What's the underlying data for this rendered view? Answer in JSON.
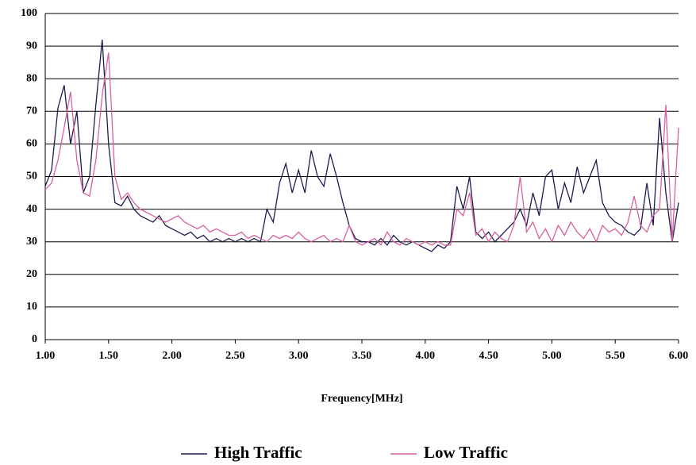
{
  "chart_data": {
    "type": "line",
    "x_label": "Frequency[MHz]",
    "x": [
      1.0,
      1.05,
      1.1,
      1.15,
      1.2,
      1.25,
      1.3,
      1.35,
      1.4,
      1.45,
      1.5,
      1.55,
      1.6,
      1.65,
      1.7,
      1.75,
      1.8,
      1.85,
      1.9,
      1.95,
      2.0,
      2.05,
      2.1,
      2.15,
      2.2,
      2.25,
      2.3,
      2.35,
      2.4,
      2.45,
      2.5,
      2.55,
      2.6,
      2.65,
      2.7,
      2.75,
      2.8,
      2.85,
      2.9,
      2.95,
      3.0,
      3.05,
      3.1,
      3.15,
      3.2,
      3.25,
      3.3,
      3.35,
      3.4,
      3.45,
      3.5,
      3.55,
      3.6,
      3.65,
      3.7,
      3.75,
      3.8,
      3.85,
      3.9,
      3.95,
      4.0,
      4.05,
      4.1,
      4.15,
      4.2,
      4.25,
      4.3,
      4.35,
      4.4,
      4.45,
      4.5,
      4.55,
      4.6,
      4.65,
      4.7,
      4.75,
      4.8,
      4.85,
      4.9,
      4.95,
      5.0,
      5.05,
      5.1,
      5.15,
      5.2,
      5.25,
      5.3,
      5.35,
      5.4,
      5.45,
      5.5,
      5.55,
      5.6,
      5.65,
      5.7,
      5.75,
      5.8,
      5.85,
      5.9,
      5.95,
      6.0
    ],
    "series": [
      {
        "name": "High Traffic",
        "color": "#1c1c50",
        "values": [
          47,
          52,
          71,
          78,
          60,
          70,
          45,
          50,
          72,
          92,
          60,
          42,
          41,
          44,
          40,
          38,
          37,
          36,
          38,
          35,
          34,
          33,
          32,
          33,
          31,
          32,
          30,
          31,
          30,
          31,
          30,
          31,
          30,
          31,
          30,
          40,
          36,
          48,
          54,
          45,
          52,
          45,
          58,
          50,
          47,
          57,
          50,
          42,
          35,
          31,
          30,
          30,
          29,
          31,
          29,
          32,
          30,
          29,
          30,
          29,
          28,
          27,
          29,
          28,
          30,
          47,
          40,
          50,
          33,
          31,
          33,
          30,
          32,
          34,
          36,
          40,
          35,
          45,
          38,
          50,
          52,
          40,
          48,
          42,
          53,
          45,
          50,
          55,
          42,
          38,
          36,
          35,
          33,
          32,
          34,
          48,
          35,
          68,
          45,
          30,
          42
        ]
      },
      {
        "name": "Low Traffic",
        "color": "#d8609f",
        "values": [
          46,
          48,
          55,
          65,
          76,
          55,
          45,
          44,
          55,
          75,
          88,
          50,
          43,
          45,
          42,
          40,
          39,
          38,
          37,
          36,
          37,
          38,
          36,
          35,
          34,
          35,
          33,
          34,
          33,
          32,
          32,
          33,
          31,
          32,
          31,
          30,
          32,
          31,
          32,
          31,
          33,
          31,
          30,
          31,
          32,
          30,
          31,
          30,
          35,
          30,
          29,
          30,
          31,
          29,
          33,
          30,
          29,
          31,
          30,
          29,
          30,
          29,
          30,
          29,
          29,
          40,
          38,
          45,
          32,
          34,
          30,
          33,
          31,
          30,
          35,
          50,
          33,
          36,
          31,
          34,
          30,
          35,
          32,
          36,
          33,
          31,
          34,
          30,
          35,
          33,
          34,
          32,
          36,
          44,
          35,
          33,
          38,
          40,
          72,
          30,
          65
        ]
      }
    ],
    "xlim": [
      1,
      6
    ],
    "xticks": [
      {
        "value": 1,
        "label": "1.00"
      },
      {
        "value": 1.5,
        "label": "1.50"
      },
      {
        "value": 2,
        "label": "2.00"
      },
      {
        "value": 2.5,
        "label": "2.50"
      },
      {
        "value": 3,
        "label": "3.00"
      },
      {
        "value": 3.5,
        "label": "3.50"
      },
      {
        "value": 4,
        "label": "4.00"
      },
      {
        "value": 4.5,
        "label": "4.50"
      },
      {
        "value": 5,
        "label": "5.00"
      },
      {
        "value": 5.5,
        "label": "5.50"
      },
      {
        "value": 6,
        "label": "6.00"
      }
    ],
    "ylim": [
      0,
      100
    ],
    "yticks": [
      0,
      10,
      20,
      30,
      40,
      50,
      60,
      70,
      80,
      90,
      100
    ],
    "grid": true,
    "legend": "bottom"
  }
}
